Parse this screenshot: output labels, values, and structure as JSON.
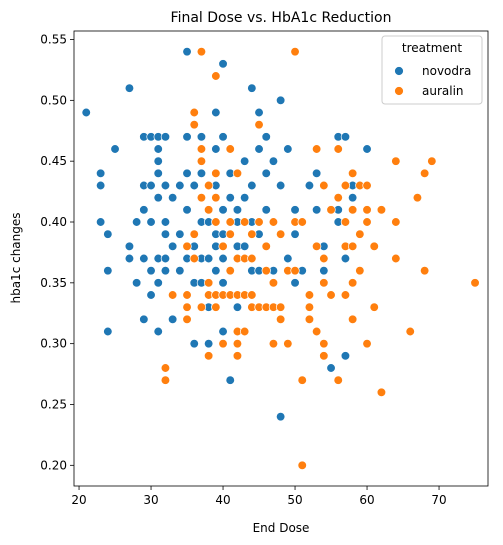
{
  "chart_data": {
    "type": "scatter",
    "title": "Final Dose vs. HbA1c Reduction",
    "xlabel": "End Dose",
    "ylabel": "hba1c changes",
    "xlim": [
      19.3,
      76.8
    ],
    "ylim": [
      0.183,
      0.557
    ],
    "x_ticks": [
      "20",
      "30",
      "40",
      "50",
      "60",
      "70"
    ],
    "x_tick_values": [
      20,
      30,
      40,
      50,
      60,
      70
    ],
    "y_ticks": [
      "0.20",
      "0.25",
      "0.30",
      "0.35",
      "0.40",
      "0.45",
      "0.50",
      "0.55"
    ],
    "y_tick_values": [
      0.2,
      0.25,
      0.3,
      0.35,
      0.4,
      0.45,
      0.5,
      0.55
    ],
    "legend": {
      "title": "treatment",
      "position": "top-right"
    },
    "grid": false,
    "series": [
      {
        "name": "novodra",
        "color": "#1f77b4",
        "points": [
          [
            21,
            0.49
          ],
          [
            23,
            0.44
          ],
          [
            23,
            0.43
          ],
          [
            23,
            0.4
          ],
          [
            24,
            0.39
          ],
          [
            24,
            0.36
          ],
          [
            24,
            0.31
          ],
          [
            25,
            0.46
          ],
          [
            27,
            0.51
          ],
          [
            27,
            0.38
          ],
          [
            27,
            0.37
          ],
          [
            28,
            0.4
          ],
          [
            28,
            0.35
          ],
          [
            29,
            0.47
          ],
          [
            29,
            0.43
          ],
          [
            29,
            0.41
          ],
          [
            29,
            0.37
          ],
          [
            29,
            0.32
          ],
          [
            30,
            0.47
          ],
          [
            30,
            0.43
          ],
          [
            30,
            0.4
          ],
          [
            30,
            0.36
          ],
          [
            30,
            0.34
          ],
          [
            31,
            0.47
          ],
          [
            31,
            0.46
          ],
          [
            31,
            0.45
          ],
          [
            31,
            0.44
          ],
          [
            31,
            0.42
          ],
          [
            31,
            0.37
          ],
          [
            31,
            0.35
          ],
          [
            31,
            0.31
          ],
          [
            32,
            0.47
          ],
          [
            32,
            0.43
          ],
          [
            32,
            0.4
          ],
          [
            32,
            0.39
          ],
          [
            32,
            0.37
          ],
          [
            32,
            0.36
          ],
          [
            32,
            0.28
          ],
          [
            33,
            0.42
          ],
          [
            33,
            0.38
          ],
          [
            33,
            0.32
          ],
          [
            34,
            0.43
          ],
          [
            34,
            0.39
          ],
          [
            34,
            0.36
          ],
          [
            35,
            0.54
          ],
          [
            35,
            0.47
          ],
          [
            35,
            0.44
          ],
          [
            35,
            0.41
          ],
          [
            35,
            0.37
          ],
          [
            35,
            0.33
          ],
          [
            36,
            0.43
          ],
          [
            36,
            0.39
          ],
          [
            36,
            0.38
          ],
          [
            36,
            0.35
          ],
          [
            36,
            0.3
          ],
          [
            37,
            0.47
          ],
          [
            37,
            0.44
          ],
          [
            37,
            0.4
          ],
          [
            37,
            0.37
          ],
          [
            37,
            0.35
          ],
          [
            37,
            0.33
          ],
          [
            38,
            0.43
          ],
          [
            38,
            0.4
          ],
          [
            38,
            0.37
          ],
          [
            38,
            0.33
          ],
          [
            38,
            0.3
          ],
          [
            39,
            0.49
          ],
          [
            39,
            0.46
          ],
          [
            39,
            0.43
          ],
          [
            39,
            0.39
          ],
          [
            39,
            0.38
          ],
          [
            39,
            0.36
          ],
          [
            39,
            0.33
          ],
          [
            40,
            0.53
          ],
          [
            40,
            0.47
          ],
          [
            40,
            0.41
          ],
          [
            40,
            0.39
          ],
          [
            40,
            0.37
          ],
          [
            40,
            0.35
          ],
          [
            40,
            0.31
          ],
          [
            41,
            0.44
          ],
          [
            41,
            0.42
          ],
          [
            41,
            0.27
          ],
          [
            42,
            0.41
          ],
          [
            42,
            0.4
          ],
          [
            42,
            0.38
          ],
          [
            42,
            0.33
          ],
          [
            42,
            0.31
          ],
          [
            43,
            0.45
          ],
          [
            43,
            0.42
          ],
          [
            43,
            0.38
          ],
          [
            44,
            0.51
          ],
          [
            44,
            0.43
          ],
          [
            44,
            0.4
          ],
          [
            44,
            0.36
          ],
          [
            45,
            0.49
          ],
          [
            45,
            0.46
          ],
          [
            45,
            0.39
          ],
          [
            45,
            0.36
          ],
          [
            46,
            0.47
          ],
          [
            46,
            0.44
          ],
          [
            46,
            0.41
          ],
          [
            46,
            0.33
          ],
          [
            47,
            0.45
          ],
          [
            47,
            0.4
          ],
          [
            47,
            0.36
          ],
          [
            48,
            0.5
          ],
          [
            48,
            0.43
          ],
          [
            48,
            0.24
          ],
          [
            49,
            0.46
          ],
          [
            49,
            0.37
          ],
          [
            50,
            0.41
          ],
          [
            50,
            0.39
          ],
          [
            50,
            0.35
          ],
          [
            51,
            0.36
          ],
          [
            52,
            0.43
          ],
          [
            53,
            0.44
          ],
          [
            53,
            0.41
          ],
          [
            54,
            0.38
          ],
          [
            54,
            0.36
          ],
          [
            55,
            0.41
          ],
          [
            55,
            0.28
          ],
          [
            56,
            0.47
          ],
          [
            56,
            0.41
          ],
          [
            56,
            0.4
          ],
          [
            57,
            0.47
          ],
          [
            57,
            0.37
          ],
          [
            57,
            0.29
          ],
          [
            58,
            0.43
          ],
          [
            58,
            0.42
          ],
          [
            60,
            0.46
          ]
        ]
      },
      {
        "name": "auralin",
        "color": "#ff7f0e",
        "points": [
          [
            32,
            0.28
          ],
          [
            32,
            0.27
          ],
          [
            33,
            0.34
          ],
          [
            35,
            0.38
          ],
          [
            35,
            0.34
          ],
          [
            35,
            0.33
          ],
          [
            35,
            0.32
          ],
          [
            36,
            0.49
          ],
          [
            36,
            0.48
          ],
          [
            36,
            0.39
          ],
          [
            36,
            0.37
          ],
          [
            37,
            0.54
          ],
          [
            37,
            0.46
          ],
          [
            37,
            0.45
          ],
          [
            37,
            0.42
          ],
          [
            37,
            0.33
          ],
          [
            38,
            0.43
          ],
          [
            38,
            0.41
          ],
          [
            38,
            0.35
          ],
          [
            38,
            0.34
          ],
          [
            38,
            0.29
          ],
          [
            39,
            0.52
          ],
          [
            39,
            0.44
          ],
          [
            39,
            0.42
          ],
          [
            39,
            0.4
          ],
          [
            39,
            0.34
          ],
          [
            39,
            0.33
          ],
          [
            40,
            0.38
          ],
          [
            40,
            0.34
          ],
          [
            40,
            0.3
          ],
          [
            41,
            0.46
          ],
          [
            41,
            0.4
          ],
          [
            41,
            0.39
          ],
          [
            41,
            0.36
          ],
          [
            41,
            0.34
          ],
          [
            42,
            0.44
          ],
          [
            42,
            0.37
          ],
          [
            42,
            0.34
          ],
          [
            42,
            0.31
          ],
          [
            42,
            0.3
          ],
          [
            42,
            0.29
          ],
          [
            43,
            0.4
          ],
          [
            43,
            0.37
          ],
          [
            43,
            0.34
          ],
          [
            43,
            0.31
          ],
          [
            44,
            0.39
          ],
          [
            44,
            0.37
          ],
          [
            44,
            0.34
          ],
          [
            44,
            0.33
          ],
          [
            45,
            0.48
          ],
          [
            45,
            0.4
          ],
          [
            45,
            0.33
          ],
          [
            46,
            0.38
          ],
          [
            46,
            0.36
          ],
          [
            46,
            0.33
          ],
          [
            47,
            0.4
          ],
          [
            47,
            0.35
          ],
          [
            47,
            0.33
          ],
          [
            47,
            0.3
          ],
          [
            48,
            0.39
          ],
          [
            48,
            0.33
          ],
          [
            48,
            0.32
          ],
          [
            49,
            0.36
          ],
          [
            49,
            0.3
          ],
          [
            50,
            0.54
          ],
          [
            50,
            0.4
          ],
          [
            50,
            0.36
          ],
          [
            51,
            0.4
          ],
          [
            51,
            0.27
          ],
          [
            51,
            0.2
          ],
          [
            52,
            0.34
          ],
          [
            52,
            0.33
          ],
          [
            52,
            0.32
          ],
          [
            53,
            0.46
          ],
          [
            53,
            0.38
          ],
          [
            53,
            0.31
          ],
          [
            54,
            0.43
          ],
          [
            54,
            0.37
          ],
          [
            54,
            0.35
          ],
          [
            54,
            0.3
          ],
          [
            54,
            0.29
          ],
          [
            55,
            0.41
          ],
          [
            55,
            0.34
          ],
          [
            56,
            0.46
          ],
          [
            56,
            0.42
          ],
          [
            56,
            0.27
          ],
          [
            57,
            0.43
          ],
          [
            57,
            0.4
          ],
          [
            57,
            0.38
          ],
          [
            57,
            0.34
          ],
          [
            58,
            0.44
          ],
          [
            58,
            0.41
          ],
          [
            58,
            0.38
          ],
          [
            58,
            0.35
          ],
          [
            58,
            0.32
          ],
          [
            59,
            0.43
          ],
          [
            59,
            0.39
          ],
          [
            59,
            0.36
          ],
          [
            60,
            0.43
          ],
          [
            60,
            0.41
          ],
          [
            60,
            0.4
          ],
          [
            60,
            0.3
          ],
          [
            61,
            0.38
          ],
          [
            61,
            0.33
          ],
          [
            62,
            0.41
          ],
          [
            62,
            0.26
          ],
          [
            64,
            0.45
          ],
          [
            64,
            0.4
          ],
          [
            64,
            0.37
          ],
          [
            66,
            0.31
          ],
          [
            67,
            0.42
          ],
          [
            68,
            0.44
          ],
          [
            68,
            0.36
          ],
          [
            69,
            0.45
          ],
          [
            75,
            0.35
          ]
        ]
      }
    ]
  }
}
